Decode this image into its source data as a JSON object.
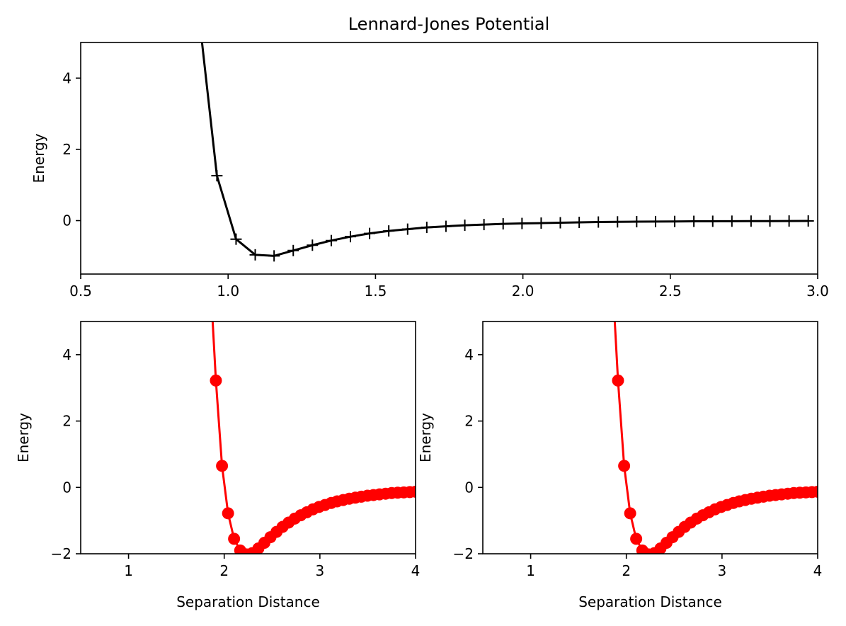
{
  "figure": {
    "title": "Lennard-Jones Potential"
  },
  "chart_data": [
    {
      "type": "line",
      "title": "Lennard-Jones Potential",
      "xlabel": "",
      "ylabel": "Energy",
      "xlim": [
        0.5,
        3.0
      ],
      "ylim": [
        -1.5,
        5
      ],
      "xticks": [
        0.5,
        1.0,
        1.5,
        2.0,
        2.5,
        3.0
      ],
      "xtick_labels": [
        "0.5",
        "1.0",
        "1.5",
        "2.0",
        "2.5",
        "3.0"
      ],
      "yticks": [
        0,
        2,
        4
      ],
      "ytick_labels": [
        "0",
        "2",
        "4"
      ],
      "grid": false,
      "series": [
        {
          "color": "#000000",
          "marker": "plus",
          "line": [
            [
              0.898,
              6.0
            ]
          ],
          "x": [
            0.898,
            0.962,
            1.027,
            1.092,
            1.156,
            1.221,
            1.286,
            1.35,
            1.415,
            1.48,
            1.545,
            1.609,
            1.674,
            1.739,
            1.803,
            1.868,
            1.933,
            1.997,
            2.062,
            2.127,
            2.191,
            2.256,
            2.321,
            2.386,
            2.45,
            2.515,
            2.58,
            2.644,
            2.709,
            2.774,
            2.838,
            2.903,
            2.968
          ],
          "y": [
            6.0,
            1.26,
            -0.52,
            -0.96,
            -0.99,
            -0.84,
            -0.69,
            -0.56,
            -0.45,
            -0.36,
            -0.29,
            -0.24,
            -0.19,
            -0.16,
            -0.13,
            -0.11,
            -0.09,
            -0.08,
            -0.07,
            -0.06,
            -0.05,
            -0.04,
            -0.035,
            -0.03,
            -0.027,
            -0.023,
            -0.02,
            -0.018,
            -0.016,
            -0.014,
            -0.013,
            -0.011,
            -0.01
          ]
        }
      ]
    },
    {
      "type": "line",
      "title": "",
      "xlabel": "Separation Distance",
      "ylabel": "Energy",
      "xlim": [
        0.5,
        4
      ],
      "ylim": [
        -2,
        5
      ],
      "xticks": [
        1,
        2,
        3,
        4
      ],
      "xtick_labels": [
        "1",
        "2",
        "3",
        "4"
      ],
      "yticks": [
        -2,
        0,
        2,
        4
      ],
      "ytick_labels": [
        "−2",
        "0",
        "2",
        "4"
      ],
      "grid": false,
      "series": [
        {
          "color": "#ff0000",
          "marker": "circle",
          "x": [
            1.86,
            1.913,
            1.977,
            2.04,
            2.103,
            2.167,
            2.23,
            2.293,
            2.357,
            2.42,
            2.483,
            2.547,
            2.61,
            2.673,
            2.737,
            2.8,
            2.863,
            2.927,
            2.99,
            3.053,
            3.117,
            3.18,
            3.243,
            3.307,
            3.37,
            3.433,
            3.497,
            3.56,
            3.623,
            3.687,
            3.75,
            3.813,
            3.877,
            3.94,
            4.0
          ],
          "y": [
            6.0,
            3.22,
            0.65,
            -0.78,
            -1.55,
            -1.9,
            -2.02,
            -1.98,
            -1.84,
            -1.67,
            -1.5,
            -1.34,
            -1.19,
            -1.06,
            -0.94,
            -0.84,
            -0.75,
            -0.66,
            -0.59,
            -0.53,
            -0.47,
            -0.42,
            -0.38,
            -0.34,
            -0.31,
            -0.28,
            -0.25,
            -0.23,
            -0.21,
            -0.19,
            -0.17,
            -0.16,
            -0.15,
            -0.14,
            -0.13
          ]
        }
      ]
    },
    {
      "type": "line",
      "title": "",
      "xlabel": "Separation Distance",
      "ylabel": "Energy",
      "xlim": [
        0.5,
        4
      ],
      "ylim": [
        -2,
        5
      ],
      "xticks": [
        1,
        2,
        3,
        4
      ],
      "xtick_labels": [
        "1",
        "2",
        "3",
        "4"
      ],
      "yticks": [
        -2,
        0,
        2,
        4
      ],
      "ytick_labels": [
        "−2",
        "0",
        "2",
        "4"
      ],
      "grid": false,
      "series": [
        {
          "color": "#ff0000",
          "marker": "circle",
          "x": [
            1.86,
            1.913,
            1.977,
            2.04,
            2.103,
            2.167,
            2.23,
            2.293,
            2.357,
            2.42,
            2.483,
            2.547,
            2.61,
            2.673,
            2.737,
            2.8,
            2.863,
            2.927,
            2.99,
            3.053,
            3.117,
            3.18,
            3.243,
            3.307,
            3.37,
            3.433,
            3.497,
            3.56,
            3.623,
            3.687,
            3.75,
            3.813,
            3.877,
            3.94,
            4.0
          ],
          "y": [
            6.0,
            3.22,
            0.65,
            -0.78,
            -1.55,
            -1.9,
            -2.02,
            -1.98,
            -1.84,
            -1.67,
            -1.5,
            -1.34,
            -1.19,
            -1.06,
            -0.94,
            -0.84,
            -0.75,
            -0.66,
            -0.59,
            -0.53,
            -0.47,
            -0.42,
            -0.38,
            -0.34,
            -0.31,
            -0.28,
            -0.25,
            -0.23,
            -0.21,
            -0.19,
            -0.17,
            -0.16,
            -0.15,
            -0.14,
            -0.13
          ]
        }
      ]
    }
  ]
}
